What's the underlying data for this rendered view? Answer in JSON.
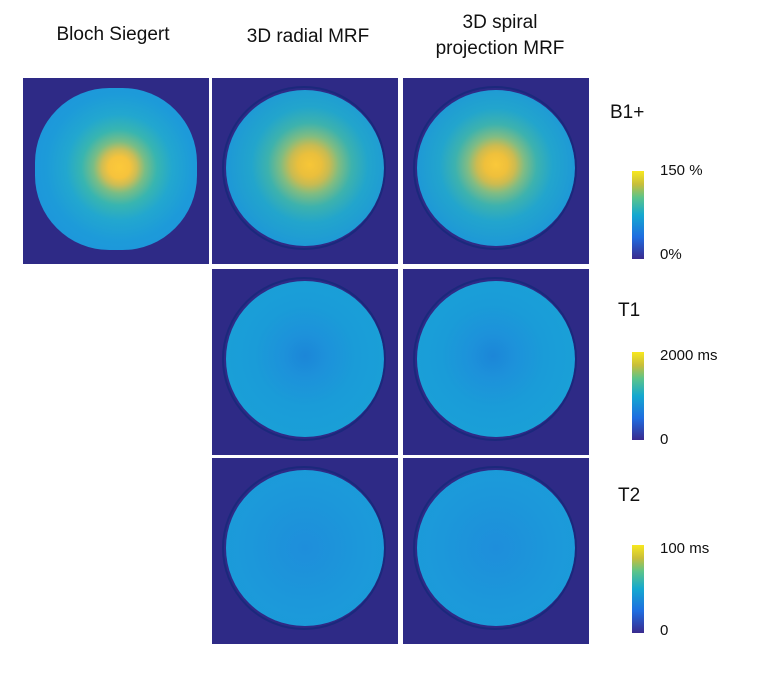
{
  "columns": [
    "Bloch Siegert",
    "3D radial MRF",
    "3D spiral\nprojection MRF"
  ],
  "rows": [
    "B1+",
    "T1",
    "T2"
  ],
  "colorbars": [
    {
      "map": "B1+",
      "max_label": "150 %",
      "min_label": "0%"
    },
    {
      "map": "T1",
      "max_label": "2000 ms",
      "min_label": "0"
    },
    {
      "map": "T2",
      "max_label": "100 ms",
      "min_label": "0"
    }
  ],
  "colors": {
    "background": "#2e2a86",
    "accent": "#f8c83a",
    "field": "#1ba6d8"
  }
}
